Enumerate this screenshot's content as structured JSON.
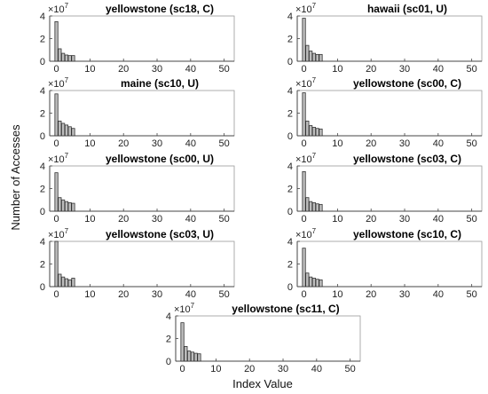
{
  "chart_data": {
    "type": "bar",
    "xlabel": "Index Value",
    "ylabel": "Number of Accesses",
    "xlim": [
      -2,
      53
    ],
    "ylim": [
      0,
      40000000
    ],
    "xticks": [
      0,
      10,
      20,
      30,
      40,
      50
    ],
    "yticks": [
      0,
      2,
      4
    ],
    "y_multiplier": "×10",
    "y_multiplier_exp": "7",
    "grid": false,
    "panels": [
      {
        "title": "yellowstone (sc18, C)",
        "x": [
          0,
          1,
          2,
          3,
          4,
          5
        ],
        "values": [
          35000000,
          11000000,
          7000000,
          5500000,
          5000000,
          5000000
        ]
      },
      {
        "title": "hawaii (sc01, U)",
        "x": [
          0,
          1,
          2,
          3,
          4,
          5
        ],
        "values": [
          38000000,
          14000000,
          9000000,
          7000000,
          6000000,
          6000000
        ]
      },
      {
        "title": "maine (sc10, U)",
        "x": [
          0,
          1,
          2,
          3,
          4,
          5
        ],
        "values": [
          37000000,
          13000000,
          11000000,
          9500000,
          8000000,
          6500000
        ]
      },
      {
        "title": "yellowstone (sc00, C)",
        "x": [
          0,
          1,
          2,
          3,
          4,
          5
        ],
        "values": [
          38000000,
          13000000,
          9000000,
          7500000,
          6500000,
          6000000
        ]
      },
      {
        "title": "yellowstone (sc00, U)",
        "x": [
          0,
          1,
          2,
          3,
          4,
          5
        ],
        "values": [
          34000000,
          12000000,
          10000000,
          8500000,
          7500000,
          7000000
        ]
      },
      {
        "title": "yellowstone (sc03, C)",
        "x": [
          0,
          1,
          2,
          3,
          4,
          5
        ],
        "values": [
          35000000,
          12000000,
          8500000,
          7500000,
          6500000,
          6000000
        ]
      },
      {
        "title": "yellowstone (sc03, U)",
        "x": [
          0,
          1,
          2,
          3,
          4,
          5
        ],
        "values": [
          40000000,
          11000000,
          8500000,
          7000000,
          6000000,
          7500000
        ]
      },
      {
        "title": "yellowstone (sc10, C)",
        "x": [
          0,
          1,
          2,
          3,
          4,
          5
        ],
        "values": [
          34000000,
          12000000,
          8500000,
          7500000,
          6500000,
          6000000
        ]
      },
      {
        "title": "yellowstone (sc11, C)",
        "x": [
          0,
          1,
          2,
          3,
          4,
          5
        ],
        "values": [
          34000000,
          13000000,
          9000000,
          8000000,
          7000000,
          6500000
        ]
      }
    ]
  }
}
